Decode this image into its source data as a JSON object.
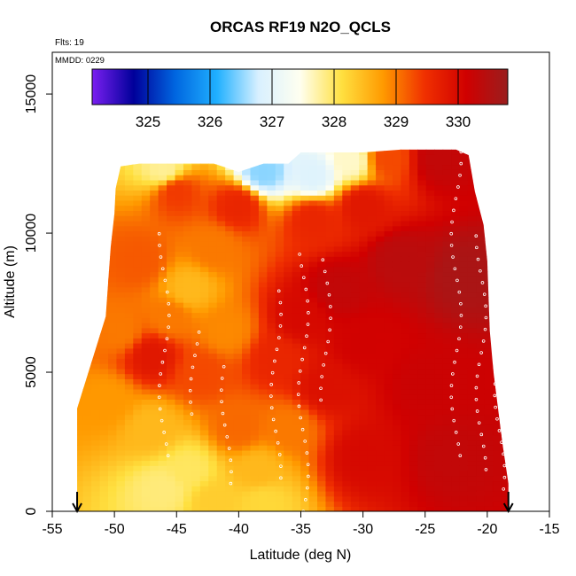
{
  "chart_data": {
    "type": "heatmap",
    "title": "ORCAS RF19 N2O_QCLS",
    "notes": {
      "flights": "Flts: 19",
      "date": "MMDD: 0229"
    },
    "xlabel": "Latitude (deg N)",
    "ylabel": "Altitude (m)",
    "xlim": [
      -55,
      -15
    ],
    "ylim": [
      0,
      16500
    ],
    "x_ticks": [
      -55,
      -50,
      -45,
      -40,
      -35,
      -30,
      -25,
      -20,
      -15
    ],
    "y_ticks": [
      0,
      5000,
      10000,
      15000
    ],
    "colorbar": {
      "range": [
        324.1,
        330.8
      ],
      "ticks": [
        325,
        326,
        327,
        328,
        329,
        330
      ],
      "colors": [
        "#7a1ff0",
        "#00009a",
        "#0066e0",
        "#20b0ff",
        "#d8f0ff",
        "#fffff0",
        "#ffe040",
        "#ff9a00",
        "#f03000",
        "#d00000",
        "#9a1e1e"
      ]
    },
    "flight_markers_lat": [
      -53,
      -18.3
    ],
    "domain": {
      "lat": [
        -53,
        -50.7,
        -50.3,
        -50,
        -49.9,
        -49.5,
        -48,
        -45,
        -42,
        -40,
        -38,
        -36,
        -35,
        -32,
        -30,
        -27,
        -22.5,
        -21.5,
        -21,
        -20.3,
        -20,
        -19.8,
        -19.5,
        -18.8,
        -18.3
      ],
      "alt_top": [
        3700,
        7000,
        9500,
        10700,
        11600,
        12400,
        12500,
        12500,
        12500,
        12200,
        12500,
        12500,
        12900,
        12900,
        12900,
        13000,
        13000,
        12800,
        11500,
        10300,
        9000,
        6500,
        5000,
        2500,
        1000
      ]
    },
    "field_points": [
      {
        "lat": -22,
        "alt": 8500,
        "v": 330.6
      },
      {
        "lat": -27,
        "alt": 9000,
        "v": 330.4
      },
      {
        "lat": -32,
        "alt": 8000,
        "v": 330.3
      },
      {
        "lat": -30,
        "alt": 6000,
        "v": 330.1
      },
      {
        "lat": -25,
        "alt": 4500,
        "v": 330.2
      },
      {
        "lat": -23,
        "alt": 2000,
        "v": 330.3
      },
      {
        "lat": -30,
        "alt": 2000,
        "v": 330.0
      },
      {
        "lat": -35,
        "alt": 7000,
        "v": 330.0
      },
      {
        "lat": -37,
        "alt": 5500,
        "v": 329.6
      },
      {
        "lat": -40,
        "alt": 3000,
        "v": 329.1
      },
      {
        "lat": -38.5,
        "alt": 1500,
        "v": 328.5
      },
      {
        "lat": -38,
        "alt": 300,
        "v": 328.2
      },
      {
        "lat": -44,
        "alt": 8000,
        "v": 328.5
      },
      {
        "lat": -41,
        "alt": 6500,
        "v": 328.9
      },
      {
        "lat": -43,
        "alt": 5000,
        "v": 329.3
      },
      {
        "lat": -47,
        "alt": 5600,
        "v": 329.8
      },
      {
        "lat": -48,
        "alt": 9000,
        "v": 329.2
      },
      {
        "lat": -49.5,
        "alt": 6500,
        "v": 329.0
      },
      {
        "lat": -50.5,
        "alt": 4000,
        "v": 328.8
      },
      {
        "lat": -47,
        "alt": 3000,
        "v": 328.5
      },
      {
        "lat": -44,
        "alt": 1500,
        "v": 328.0
      },
      {
        "lat": -46,
        "alt": 800,
        "v": 327.9
      },
      {
        "lat": -42,
        "alt": 400,
        "v": 328.3
      },
      {
        "lat": -45,
        "alt": 11500,
        "v": 329.4
      },
      {
        "lat": -40,
        "alt": 11000,
        "v": 329.6
      },
      {
        "lat": -46,
        "alt": 12300,
        "v": 327.8
      },
      {
        "lat": -38,
        "alt": 12200,
        "v": 326.5
      },
      {
        "lat": -34,
        "alt": 12100,
        "v": 326.9
      },
      {
        "lat": -31,
        "alt": 12600,
        "v": 327.6
      },
      {
        "lat": -28,
        "alt": 12700,
        "v": 329.3
      },
      {
        "lat": -24,
        "alt": 12700,
        "v": 330.3
      },
      {
        "lat": -34,
        "alt": 10500,
        "v": 329.6
      },
      {
        "lat": -30,
        "alt": 11000,
        "v": 329.8
      },
      {
        "lat": -42,
        "alt": 9500,
        "v": 329.0
      },
      {
        "lat": -45.5,
        "alt": 7000,
        "v": 329.0
      },
      {
        "lat": -36,
        "alt": 3000,
        "v": 329.0
      },
      {
        "lat": -33,
        "alt": 4500,
        "v": 329.9
      }
    ]
  }
}
